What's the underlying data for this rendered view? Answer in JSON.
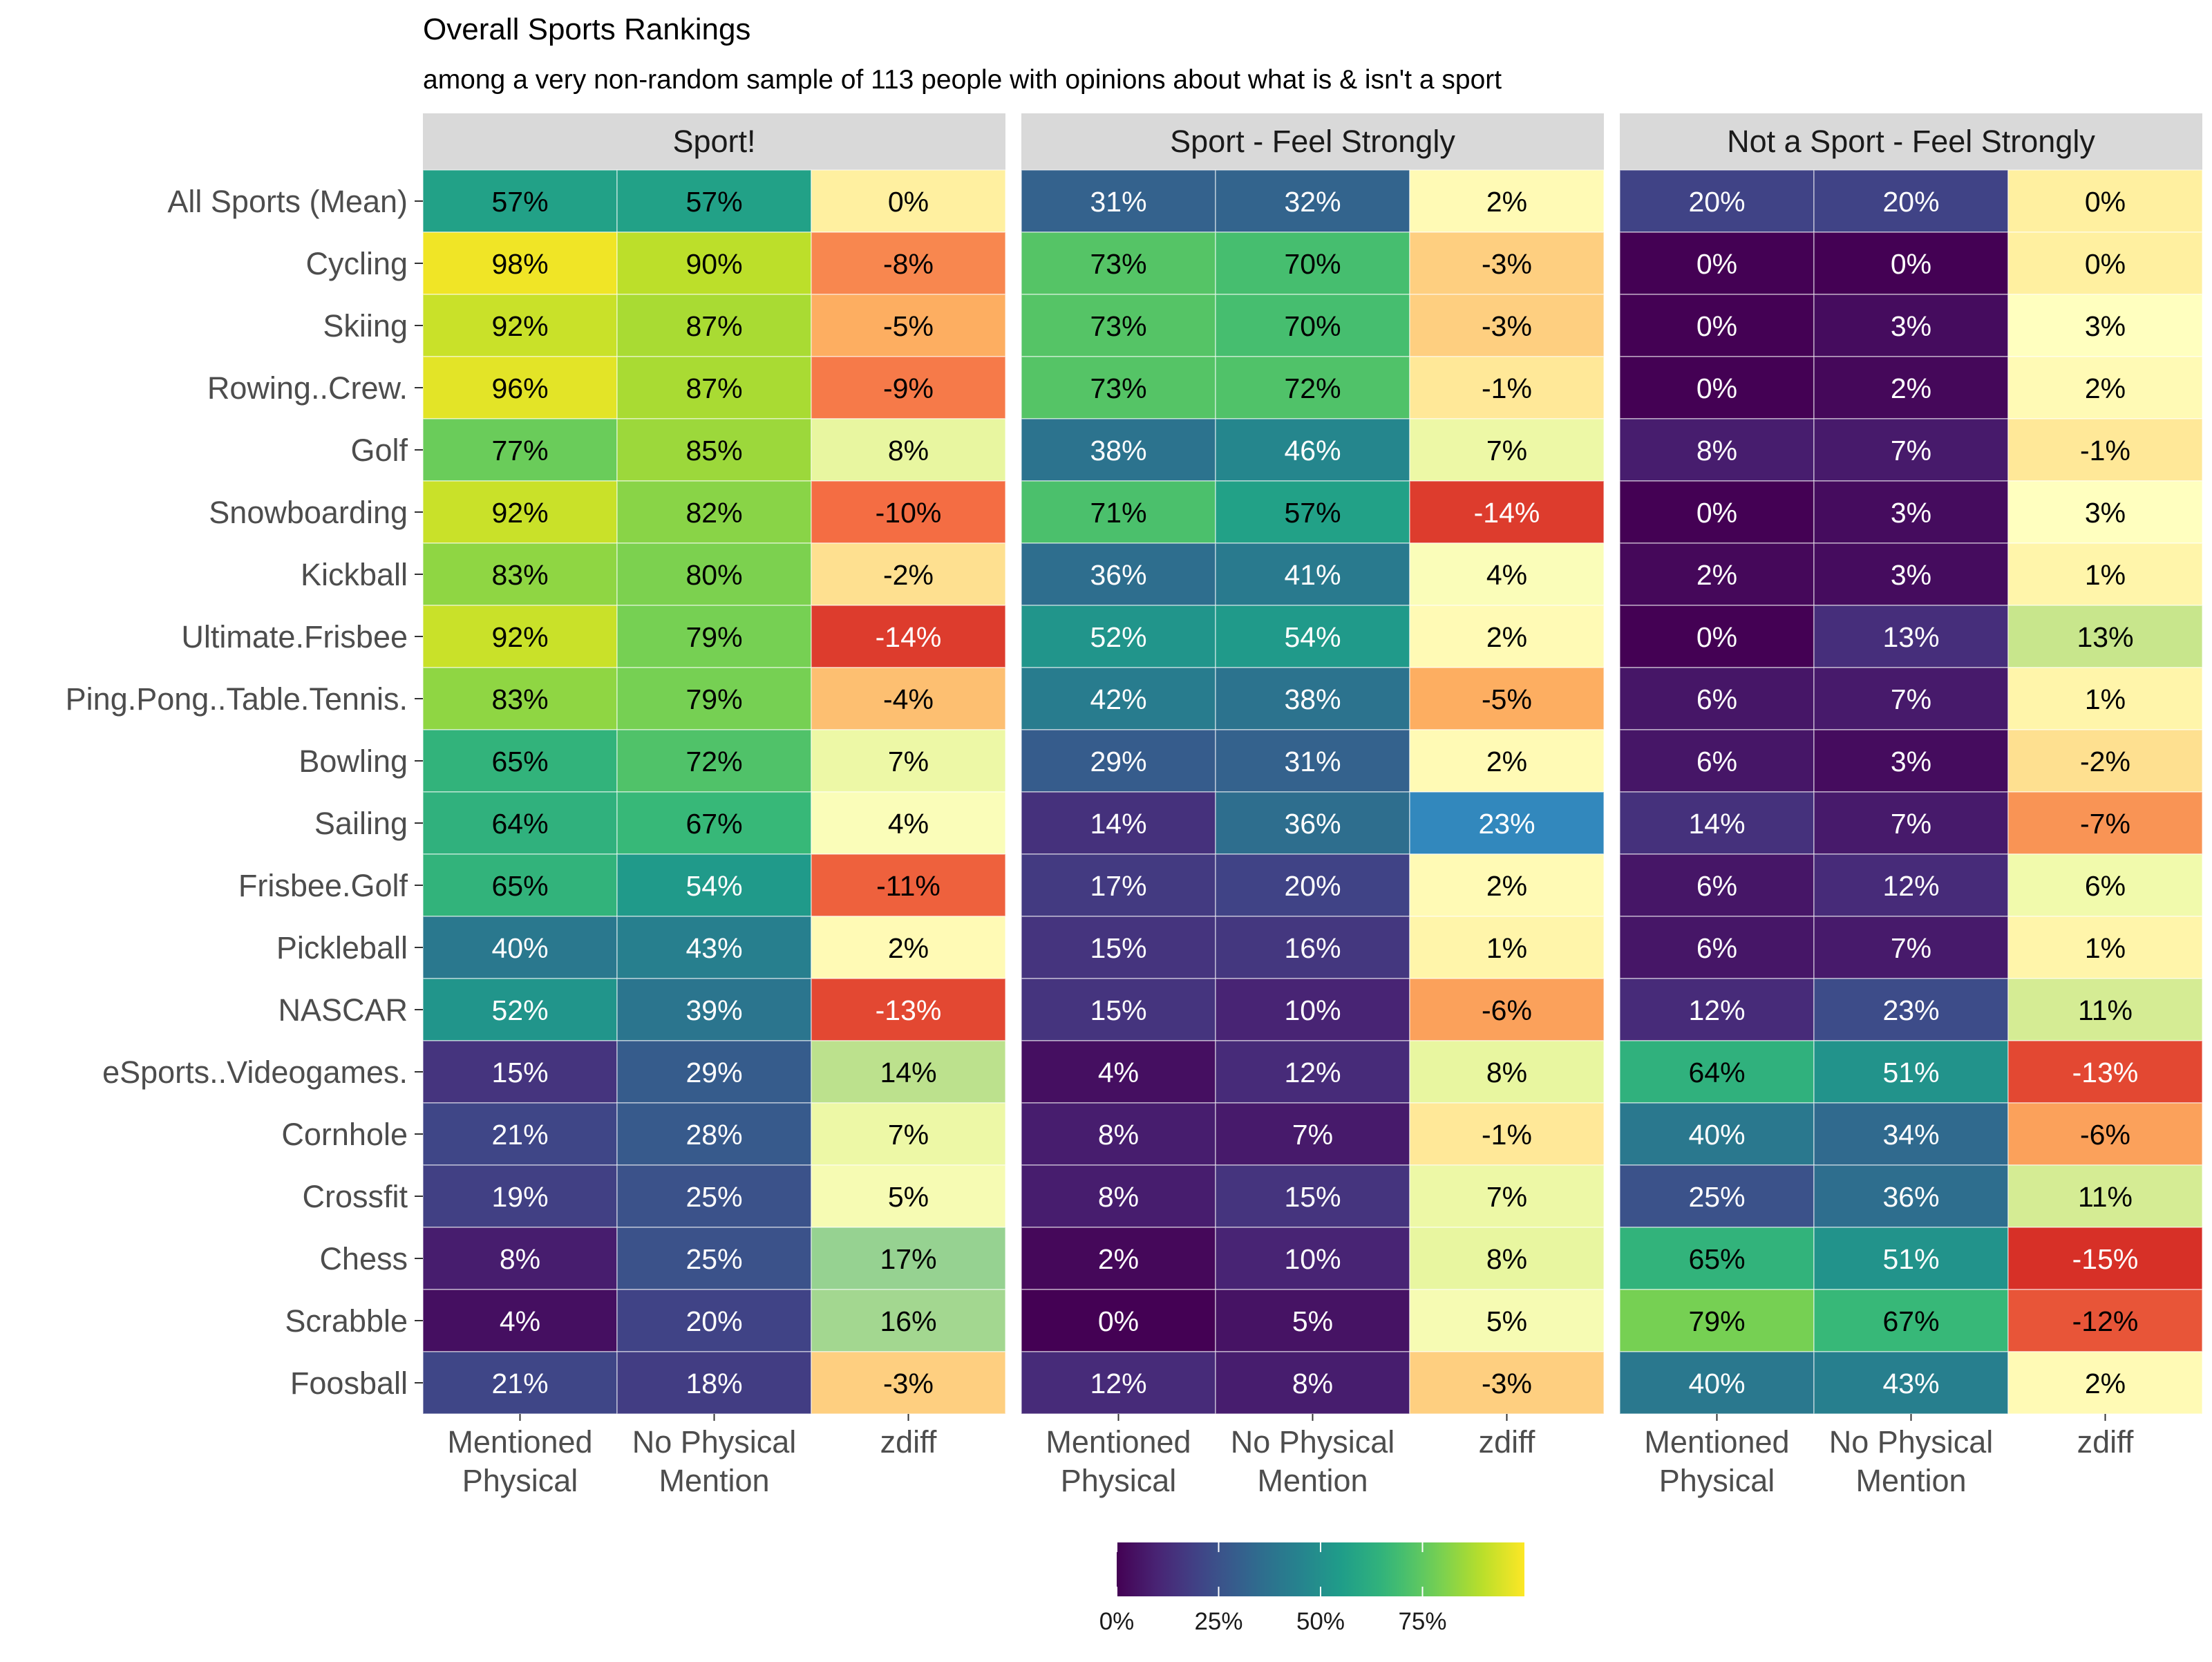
{
  "chart_data": {
    "type": "heatmap",
    "title": "Overall Sports Rankings",
    "subtitle": "among a very non-random sample of 113 people with opinions about what is & isn't a sport",
    "panels": [
      "Sport!",
      "Sport - Feel Strongly",
      "Not a Sport - Feel Strongly"
    ],
    "columns": [
      {
        "key": "mentioned",
        "label_lines": [
          "Mentioned",
          "Physical"
        ]
      },
      {
        "key": "nophys",
        "label_lines": [
          "No Physical",
          "Mention"
        ]
      },
      {
        "key": "zdiff",
        "label_lines": [
          "zdiff"
        ]
      }
    ],
    "rows": [
      "All Sports (Mean)",
      "Cycling",
      "Skiing",
      "Rowing..Crew.",
      "Golf",
      "Snowboarding",
      "Kickball",
      "Ultimate.Frisbee",
      "Ping.Pong..Table.Tennis.",
      "Bowling",
      "Sailing",
      "Frisbee.Golf",
      "Pickleball",
      "NASCAR",
      "eSports..Videogames.",
      "Cornhole",
      "Crossfit",
      "Chess",
      "Scrabble",
      "Foosball"
    ],
    "values": [
      [
        [
          57,
          57,
          0
        ],
        [
          31,
          32,
          2
        ],
        [
          20,
          20,
          0
        ]
      ],
      [
        [
          98,
          90,
          -8
        ],
        [
          73,
          70,
          -3
        ],
        [
          0,
          0,
          0
        ]
      ],
      [
        [
          92,
          87,
          -5
        ],
        [
          73,
          70,
          -3
        ],
        [
          0,
          3,
          3
        ]
      ],
      [
        [
          96,
          87,
          -9
        ],
        [
          73,
          72,
          -1
        ],
        [
          0,
          2,
          2
        ]
      ],
      [
        [
          77,
          85,
          8
        ],
        [
          38,
          46,
          7
        ],
        [
          8,
          7,
          -1
        ]
      ],
      [
        [
          92,
          82,
          -10
        ],
        [
          71,
          57,
          -14
        ],
        [
          0,
          3,
          3
        ]
      ],
      [
        [
          83,
          80,
          -2
        ],
        [
          36,
          41,
          4
        ],
        [
          2,
          3,
          1
        ]
      ],
      [
        [
          92,
          79,
          -14
        ],
        [
          52,
          54,
          2
        ],
        [
          0,
          13,
          13
        ]
      ],
      [
        [
          83,
          79,
          -4
        ],
        [
          42,
          38,
          -5
        ],
        [
          6,
          7,
          1
        ]
      ],
      [
        [
          65,
          72,
          7
        ],
        [
          29,
          31,
          2
        ],
        [
          6,
          3,
          -2
        ]
      ],
      [
        [
          64,
          67,
          4
        ],
        [
          14,
          36,
          23
        ],
        [
          14,
          7,
          -7
        ]
      ],
      [
        [
          65,
          54,
          -11
        ],
        [
          17,
          20,
          2
        ],
        [
          6,
          12,
          6
        ]
      ],
      [
        [
          40,
          43,
          2
        ],
        [
          15,
          16,
          1
        ],
        [
          6,
          7,
          1
        ]
      ],
      [
        [
          52,
          39,
          -13
        ],
        [
          15,
          10,
          -6
        ],
        [
          12,
          23,
          11
        ]
      ],
      [
        [
          15,
          29,
          14
        ],
        [
          4,
          12,
          8
        ],
        [
          64,
          51,
          -13
        ]
      ],
      [
        [
          21,
          28,
          7
        ],
        [
          8,
          7,
          -1
        ],
        [
          40,
          34,
          -6
        ]
      ],
      [
        [
          19,
          25,
          5
        ],
        [
          8,
          15,
          7
        ],
        [
          25,
          36,
          11
        ]
      ],
      [
        [
          8,
          25,
          17
        ],
        [
          2,
          10,
          8
        ],
        [
          65,
          51,
          -15
        ]
      ],
      [
        [
          4,
          20,
          16
        ],
        [
          0,
          5,
          5
        ],
        [
          79,
          67,
          -12
        ]
      ],
      [
        [
          21,
          18,
          -3
        ],
        [
          12,
          8,
          -3
        ],
        [
          40,
          43,
          2
        ]
      ]
    ],
    "value_suffix": "%",
    "legend": {
      "placement": "bottom",
      "scale": "viridis",
      "range": [
        0,
        100
      ],
      "ticks": [
        0,
        25,
        50,
        75
      ],
      "tick_labels": [
        "0%",
        "25%",
        "50%",
        "75%"
      ]
    },
    "zdiff_colors": "diverging red-yellow-blue"
  }
}
